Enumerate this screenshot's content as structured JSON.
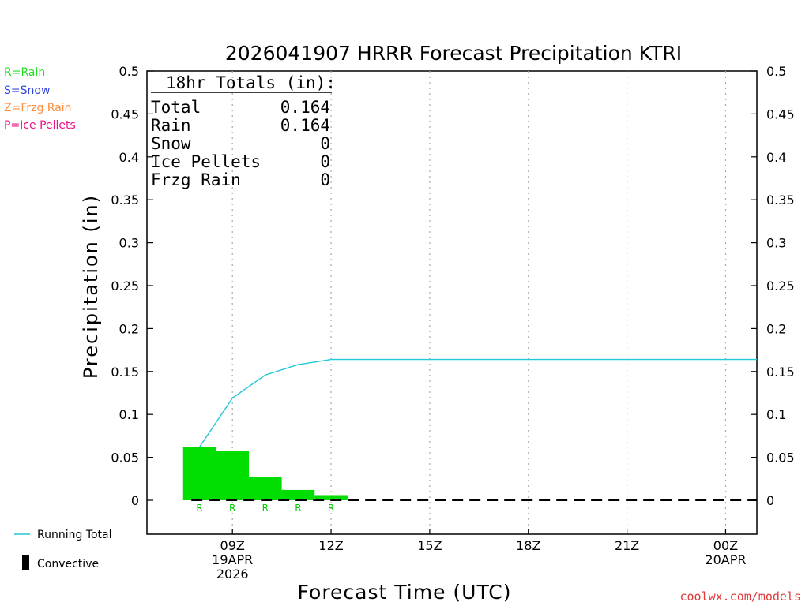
{
  "chart_data": {
    "type": "bar",
    "title": "2026041907 HRRR Forecast Precipitation KTRI",
    "xlabel": "Forecast Time (UTC)",
    "ylabel": "Precipitation (in)",
    "ylim": [
      -0.04,
      0.5
    ],
    "y_ticks": [
      0,
      0.05,
      0.1,
      0.15,
      0.2,
      0.25,
      0.3,
      0.35,
      0.4,
      0.45,
      0.5
    ],
    "y_tick_labels": [
      "0",
      "0.05",
      "0.1",
      "0.15",
      "0.2",
      "0.25",
      "0.3",
      "0.35",
      "0.4",
      "0.45",
      "0.5"
    ],
    "x_range_hours": [
      6.4,
      24.95
    ],
    "x_ticks": [
      {
        "hour": 9,
        "lines": [
          "09Z",
          "19APR",
          "2026"
        ]
      },
      {
        "hour": 12,
        "lines": [
          "12Z"
        ]
      },
      {
        "hour": 15,
        "lines": [
          "15Z"
        ]
      },
      {
        "hour": 18,
        "lines": [
          "18Z"
        ]
      },
      {
        "hour": 21,
        "lines": [
          "21Z"
        ]
      },
      {
        "hour": 24,
        "lines": [
          "00Z",
          "20APR"
        ]
      }
    ],
    "hourly_bars": {
      "name": "Rain",
      "color": "#00dd00",
      "hours": [
        8,
        9,
        10,
        11,
        12
      ],
      "values": [
        0.062,
        0.057,
        0.027,
        0.012,
        0.006
      ],
      "ptype_labels": [
        "R",
        "R",
        "R",
        "R",
        "R"
      ]
    },
    "running_total": {
      "name": "Running Total",
      "color": "#1ec8d8",
      "hours": [
        8,
        9,
        10,
        11,
        12,
        25
      ],
      "values": [
        0.062,
        0.119,
        0.146,
        0.158,
        0.164,
        0.164
      ]
    },
    "convective": {
      "name": "Convective",
      "values": [
        0,
        0,
        0,
        0,
        0
      ]
    }
  },
  "totals": {
    "header": "18hr Totals (in):",
    "rows": [
      {
        "label": "Total",
        "value": "0.164"
      },
      {
        "label": "Rain",
        "value": "0.164"
      },
      {
        "label": "Snow",
        "value": "0"
      },
      {
        "label": "Ice Pellets",
        "value": "0"
      },
      {
        "label": "Frzg Rain",
        "value": "0"
      }
    ]
  },
  "ptype_key": [
    {
      "text": "R=Rain",
      "color": "#22dd22"
    },
    {
      "text": "S=Snow",
      "color": "#3344dd"
    },
    {
      "text": "Z=Frzg Rain",
      "color": "#ff8c3a"
    },
    {
      "text": "P=Ice Pellets",
      "color": "#ee1188"
    }
  ],
  "legend": {
    "running_total_label": "Running Total",
    "convective_label": "Convective",
    "running_total_color": "#1ec8d8"
  },
  "source": "coolwx.com/models"
}
